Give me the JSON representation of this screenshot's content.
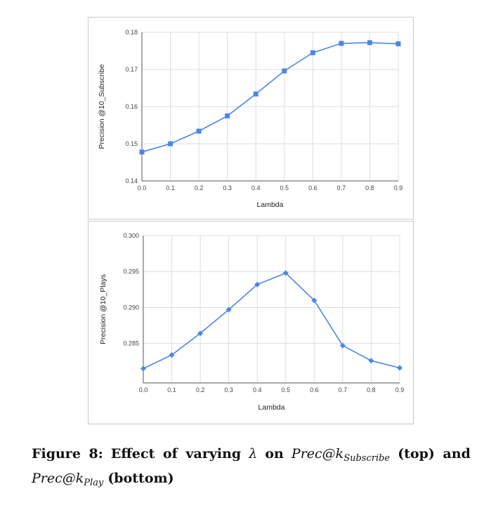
{
  "chart_data": [
    {
      "type": "line",
      "title": "",
      "xlabel": "Lambda",
      "ylabel": "Precision @10_Subscribe",
      "x": [
        0.0,
        0.1,
        0.2,
        0.3,
        0.4,
        0.5,
        0.6,
        0.7,
        0.8,
        0.9
      ],
      "x_tick_labels": [
        "0.0",
        "0.1",
        "0.2",
        "0.3",
        "0.4",
        "0.5",
        "0.6",
        "0.7",
        "0.8",
        "0.9"
      ],
      "y_ticks": [
        0.14,
        0.15,
        0.16,
        0.17,
        0.18
      ],
      "y_tick_labels": [
        "0.14",
        "0.15",
        "0.16",
        "0.17",
        "0.18"
      ],
      "ylim": [
        0.14,
        0.18
      ],
      "series": [
        {
          "name": "Precision @10_Subscribe",
          "values": [
            0.1478,
            0.15,
            0.1534,
            0.1575,
            0.1634,
            0.1696,
            0.1745,
            0.177,
            0.1772,
            0.1769
          ],
          "marker": "square",
          "color": "#4a86e8"
        }
      ],
      "grid": true,
      "legend": "none"
    },
    {
      "type": "line",
      "title": "",
      "xlabel": "Lambda",
      "ylabel": "Precision @10_Plays",
      "x": [
        0.0,
        0.1,
        0.2,
        0.3,
        0.4,
        0.5,
        0.6,
        0.7,
        0.8,
        0.9
      ],
      "x_tick_labels": [
        "0.0",
        "0.1",
        "0.2",
        "0.3",
        "0.4",
        "0.5",
        "0.6",
        "0.7",
        "0.8",
        "0.9"
      ],
      "y_ticks": [
        0.285,
        0.29,
        0.295,
        0.3
      ],
      "y_tick_labels": [
        "0.285",
        "0.290",
        "0.295",
        "0.300"
      ],
      "ylim": [
        0.2795,
        0.3
      ],
      "series": [
        {
          "name": "Precision @10_Plays",
          "values": [
            0.2815,
            0.2834,
            0.2864,
            0.2897,
            0.2932,
            0.2948,
            0.291,
            0.2847,
            0.2826,
            0.2816
          ],
          "marker": "diamond",
          "color": "#4a86e8"
        }
      ],
      "grid": true,
      "legend": "none"
    }
  ],
  "caption": {
    "label": "Figure 8:",
    "text_1": "Effect of varying",
    "symbol": "λ",
    "on": "on",
    "metric_1_base": "Prec@k",
    "metric_1_sub": "Subscribe",
    "text_top": "(top) and",
    "metric_2_base": "Prec@k",
    "metric_2_sub": "Play",
    "text_bottom": "(bottom)"
  }
}
